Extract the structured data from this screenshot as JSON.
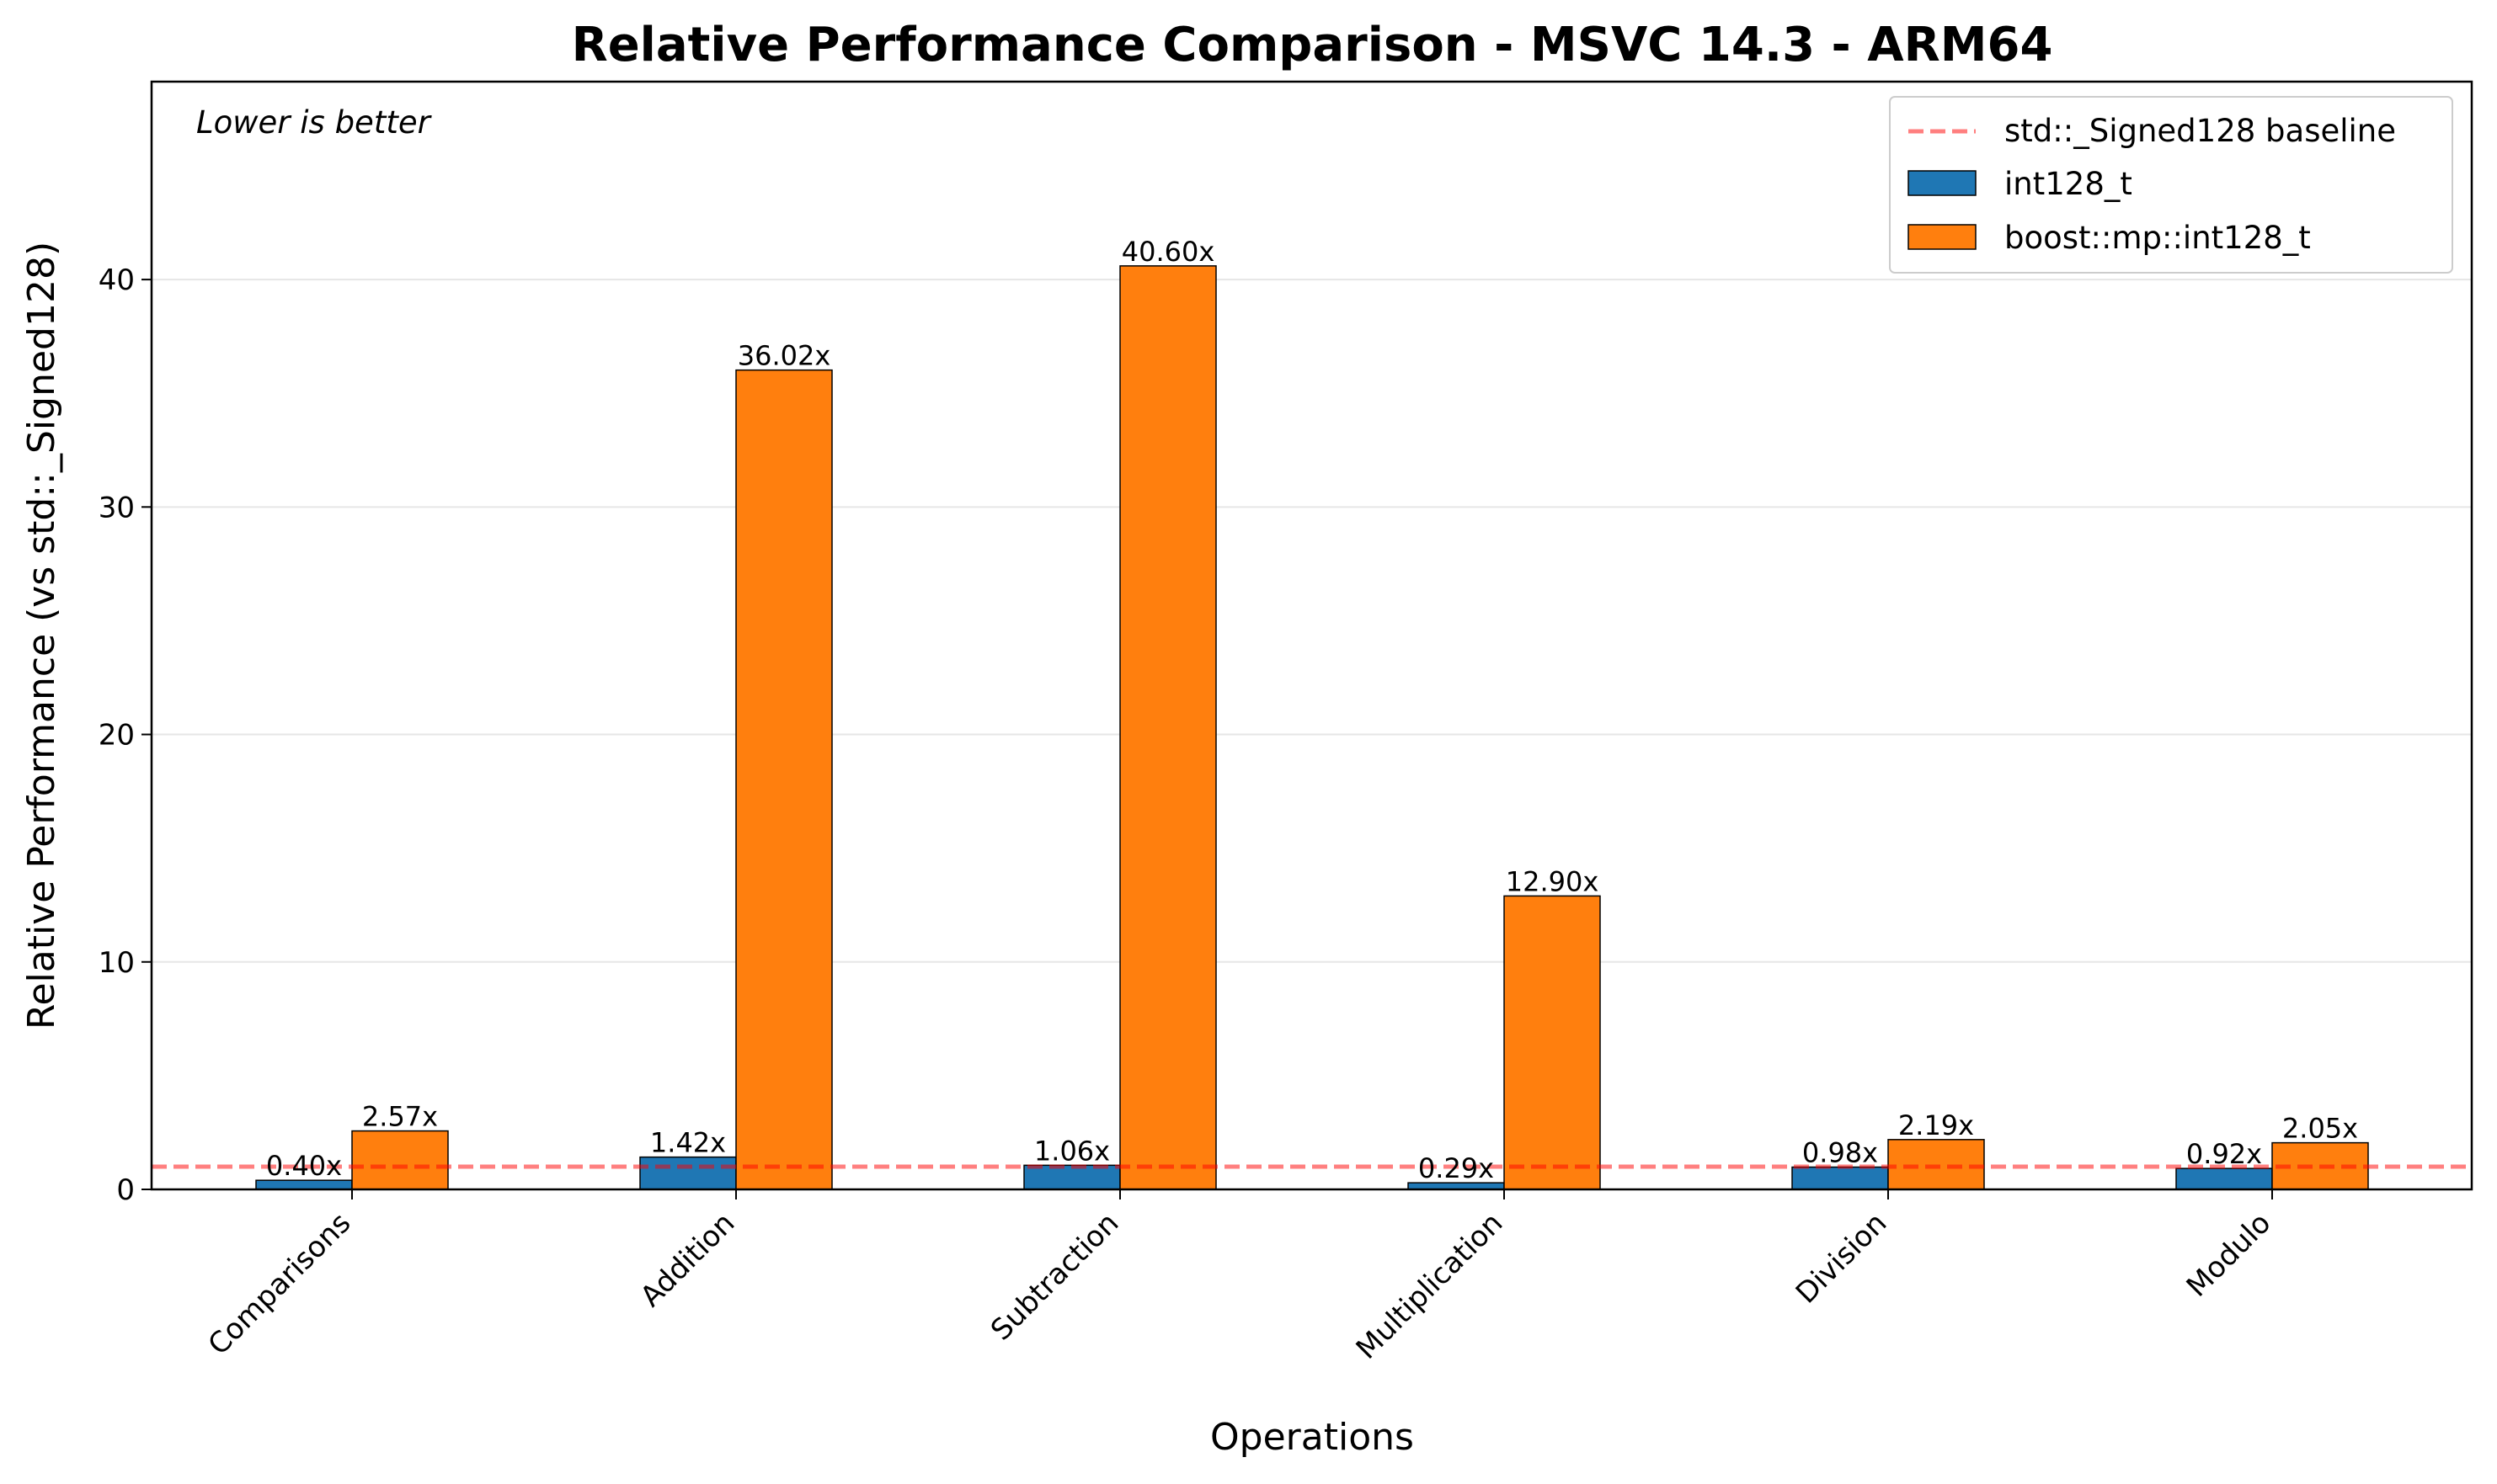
{
  "chart_data": {
    "type": "bar",
    "title": "Relative Performance Comparison - MSVC 14.3 - ARM64",
    "xlabel": "Operations",
    "ylabel": "Relative Performance (vs std::_Signed128)",
    "annotation": "Lower is better",
    "categories": [
      "Comparisons",
      "Addition",
      "Subtraction",
      "Multiplication",
      "Division",
      "Modulo"
    ],
    "series": [
      {
        "name": "int128_t",
        "color": "#1f77b4",
        "values": [
          0.4,
          1.42,
          1.06,
          0.29,
          0.98,
          0.92
        ],
        "labels": [
          "0.40x",
          "1.42x",
          "1.06x",
          "0.29x",
          "0.98x",
          "0.92x"
        ]
      },
      {
        "name": "boost::mp::int128_t",
        "color": "#ff7f0e",
        "values": [
          2.57,
          36.02,
          40.6,
          12.9,
          2.19,
          2.05
        ],
        "labels": [
          "2.57x",
          "36.02x",
          "40.60x",
          "12.90x",
          "2.19x",
          "2.05x"
        ]
      }
    ],
    "baseline": {
      "name": "std::_Signed128 baseline",
      "value": 1.0,
      "color": "#ff0000",
      "style": "dashed"
    },
    "ylim": [
      0,
      48.7
    ],
    "yticks": [
      0,
      10,
      20,
      30,
      40
    ],
    "ytick_labels": [
      "0",
      "10",
      "20",
      "30",
      "40"
    ],
    "grid": "horizontal",
    "legend_position": "top-right"
  }
}
